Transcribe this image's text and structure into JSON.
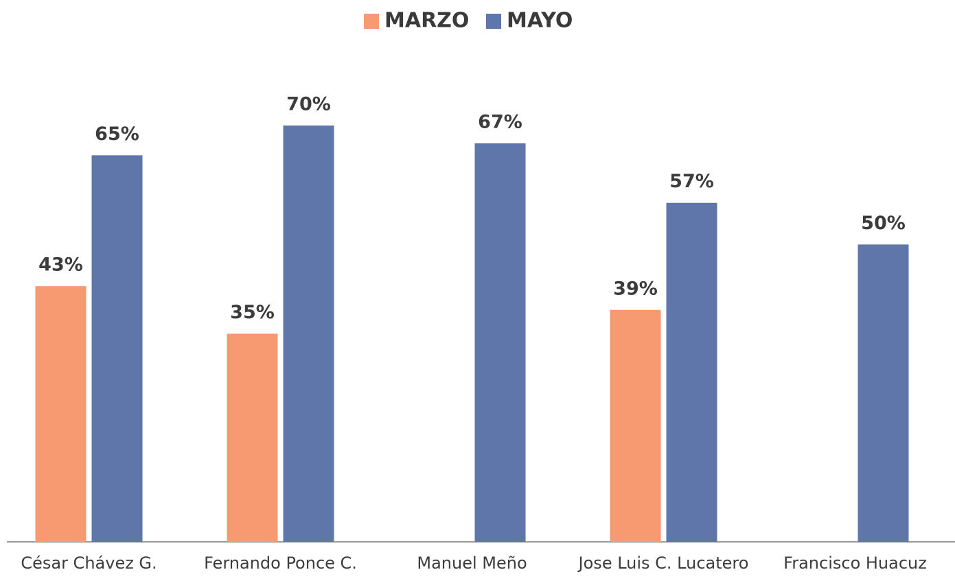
{
  "chart_data": {
    "type": "bar",
    "categories": [
      "César Chávez G.",
      "Fernando Ponce C.",
      "Manuel Meño",
      "Jose Luis C. Lucatero",
      "Francisco Huacuz"
    ],
    "series": [
      {
        "name": "MARZO",
        "color": "#f79a72",
        "values": [
          43,
          35,
          null,
          39,
          null
        ],
        "value_labels": [
          "43%",
          "35%",
          null,
          "39%",
          null
        ]
      },
      {
        "name": "MAYO",
        "color": "#5e76a9",
        "values": [
          65,
          70,
          67,
          57,
          50
        ],
        "value_labels": [
          "65%",
          "70%",
          "67%",
          "57%",
          "50%"
        ]
      }
    ],
    "legend": "top"
  }
}
